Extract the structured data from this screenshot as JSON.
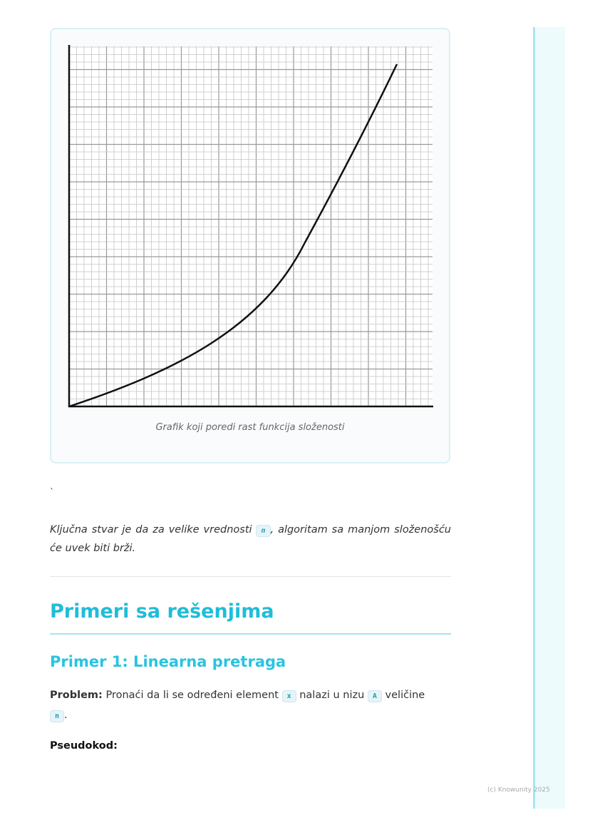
{
  "figure": {
    "caption": "Grafik koji poredi rast funkcija složenosti"
  },
  "stray_mark": "`",
  "key_point": {
    "before": "Ključna stvar je da za velike vrednosti ",
    "code": "n",
    "after": ", algoritam sa manjom složenošću će uvek biti brži."
  },
  "section": {
    "title": "Primeri sa rešenjima"
  },
  "example": {
    "title": "Primer 1: Linearna pretraga",
    "problem_label": "Problem:",
    "problem_text_1": " Pronaći da li se određeni element ",
    "code_x": "x",
    "problem_text_2": " nalazi u nizu ",
    "code_a": "A",
    "problem_text_3": " veličine ",
    "code_n": "n",
    "problem_end": ".",
    "pseudocode_label": "Pseudokod:"
  },
  "footer": "(c) Knowunity 2025",
  "colors": {
    "accent": "#1fbdd8",
    "sidebar": "#eefbfd"
  }
}
